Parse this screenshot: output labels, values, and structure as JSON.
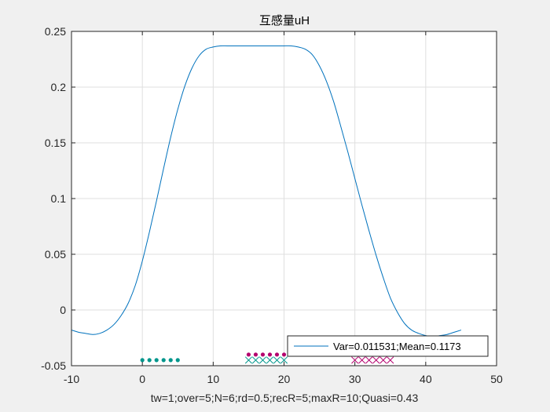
{
  "chart_data": {
    "type": "line",
    "title": "互感量uH",
    "xlabel": "tw=1;over=5;N=6;rd=0.5;recR=5;maxR=10;Quasi=0.43",
    "ylabel": "",
    "xlim": [
      -10,
      50
    ],
    "ylim": [
      -0.05,
      0.25
    ],
    "xticks": [
      -10,
      0,
      10,
      20,
      30,
      40,
      50
    ],
    "yticks": [
      -0.05,
      0,
      0.05,
      0.1,
      0.15,
      0.2,
      0.25
    ],
    "xtick_labels": [
      "-10",
      "0",
      "10",
      "20",
      "30",
      "40",
      "50"
    ],
    "ytick_labels": [
      "-0.05",
      "0",
      "0.05",
      "0.1",
      "0.15",
      "0.2",
      "0.25"
    ],
    "grid": true,
    "legend": {
      "position": "bottom-right",
      "entries": [
        "Var=0.011531;Mean=0.1173"
      ]
    },
    "series": [
      {
        "name": "Var=0.011531;Mean=0.1173",
        "color": "#0072BD",
        "x": [
          -10,
          -9,
          -8,
          -7,
          -6,
          -5,
          -4,
          -3,
          -2,
          -1,
          0,
          1,
          2,
          3,
          4,
          5,
          6,
          7,
          8,
          9,
          10,
          11,
          12,
          13,
          14,
          15,
          16,
          17,
          18,
          19,
          20,
          21,
          22,
          23,
          24,
          25,
          26,
          27,
          28,
          29,
          30,
          31,
          32,
          33,
          34,
          35,
          36,
          37,
          38,
          39,
          40,
          41,
          42,
          43,
          44,
          45
        ],
        "y": [
          -0.018,
          -0.02,
          -0.021,
          -0.022,
          -0.021,
          -0.018,
          -0.013,
          -0.005,
          0.006,
          0.022,
          0.044,
          0.07,
          0.098,
          0.127,
          0.155,
          0.18,
          0.201,
          0.217,
          0.228,
          0.234,
          0.236,
          0.237,
          0.237,
          0.237,
          0.237,
          0.237,
          0.237,
          0.237,
          0.237,
          0.237,
          0.237,
          0.237,
          0.236,
          0.234,
          0.229,
          0.219,
          0.205,
          0.187,
          0.165,
          0.142,
          0.118,
          0.094,
          0.071,
          0.049,
          0.029,
          0.011,
          -0.002,
          -0.012,
          -0.018,
          -0.021,
          -0.023,
          -0.024,
          -0.023,
          -0.022,
          -0.02,
          -0.018
        ]
      }
    ],
    "markers": [
      {
        "style": "dot",
        "color": "#00968C",
        "y": -0.045,
        "x": [
          0,
          1,
          2,
          3,
          4,
          5
        ]
      },
      {
        "style": "dot",
        "color": "#B4006E",
        "y": -0.04,
        "x": [
          15,
          16,
          17,
          18,
          19,
          20
        ]
      },
      {
        "style": "x",
        "color": "#00968C",
        "y": -0.045,
        "x": [
          15,
          16,
          17,
          18,
          19,
          20
        ]
      },
      {
        "style": "x",
        "color": "#B4006E",
        "y": -0.045,
        "x": [
          30,
          31,
          32,
          33,
          34,
          35
        ]
      }
    ]
  }
}
